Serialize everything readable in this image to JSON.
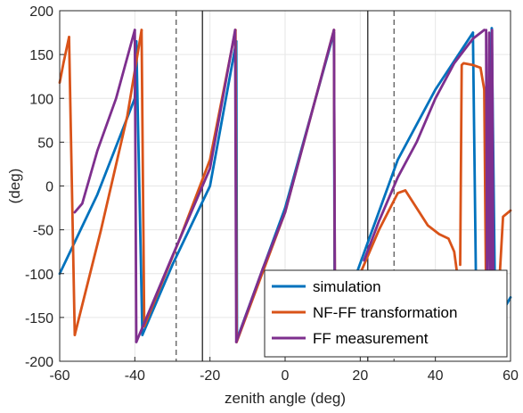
{
  "chart_data": {
    "type": "line",
    "title": "",
    "xlabel": "zenith angle (deg)",
    "ylabel": "(deg)",
    "xlim": [
      -60,
      60
    ],
    "ylim": [
      -200,
      200
    ],
    "xticks": [
      -60,
      -40,
      -20,
      0,
      20,
      40,
      60
    ],
    "yticks": [
      -200,
      -150,
      -100,
      -50,
      0,
      50,
      100,
      150,
      200
    ],
    "grid": true,
    "legend_position": "bottom-right",
    "vertical_lines": [
      {
        "x": -29,
        "style": "dashed",
        "color": "#666666"
      },
      {
        "x": -22,
        "style": "solid",
        "color": "#333333"
      },
      {
        "x": 22,
        "style": "solid",
        "color": "#333333"
      },
      {
        "x": 29,
        "style": "dashed",
        "color": "#666666"
      }
    ],
    "series": [
      {
        "name": "simulation",
        "color": "#0072BD",
        "segments": [
          [
            [
              -60,
              -100
            ],
            [
              -50,
              -10
            ],
            [
              -40,
              100
            ],
            [
              -39.6,
              165
            ]
          ],
          [
            [
              -39.6,
              165
            ],
            [
              -38,
              -170
            ]
          ],
          [
            [
              -38,
              -170
            ],
            [
              -30,
              -90
            ],
            [
              -20,
              0
            ],
            [
              -13,
              165
            ]
          ],
          [
            [
              -13,
              165
            ],
            [
              -12.8,
              -175
            ]
          ],
          [
            [
              -12.8,
              -175
            ],
            [
              0,
              -25
            ],
            [
              13,
              175
            ]
          ],
          [
            [
              13,
              175
            ],
            [
              13.2,
              -180
            ]
          ],
          [
            [
              19,
              -100
            ],
            [
              30,
              30
            ],
            [
              40,
              110
            ],
            [
              50,
              175
            ]
          ],
          [
            [
              50,
              175
            ],
            [
              51,
              -175
            ]
          ],
          [
            [
              53.5,
              -170
            ],
            [
              55,
              180
            ]
          ],
          [
            [
              55,
              180
            ],
            [
              56,
              -172
            ]
          ],
          [
            [
              56,
              -172
            ],
            [
              57,
              -150
            ],
            [
              60,
              -127
            ]
          ]
        ]
      },
      {
        "name": "NF-FF transformation",
        "color": "#D95319",
        "segments": [
          [
            [
              -60,
              118
            ],
            [
              -59,
              140
            ],
            [
              -57.5,
              170
            ]
          ],
          [
            [
              -57.5,
              170
            ],
            [
              -56,
              -170
            ]
          ],
          [
            [
              -56,
              -170
            ],
            [
              -49,
              -50
            ],
            [
              -42,
              80
            ],
            [
              -38.2,
              178
            ]
          ],
          [
            [
              -38.2,
              178
            ],
            [
              -37.5,
              -160
            ]
          ],
          [
            [
              -37.5,
              -160
            ],
            [
              -28,
              -60
            ],
            [
              -20,
              30
            ],
            [
              -13.2,
              178
            ]
          ],
          [
            [
              -13.2,
              178
            ],
            [
              -12.9,
              -178
            ]
          ],
          [
            [
              -12.9,
              -178
            ],
            [
              0,
              -30
            ],
            [
              13,
              178
            ]
          ],
          [
            [
              13,
              178
            ],
            [
              13.3,
              -180
            ]
          ],
          [
            [
              20,
              -100
            ],
            [
              25,
              -50
            ],
            [
              30,
              -8
            ],
            [
              32,
              -5
            ],
            [
              35,
              -25
            ],
            [
              38,
              -45
            ],
            [
              41,
              -55
            ],
            [
              43.5,
              -60
            ],
            [
              45,
              -75
            ],
            [
              45.8,
              -100
            ]
          ],
          [
            [
              46.6,
              -90
            ],
            [
              47,
              138
            ],
            [
              47.5,
              140
            ],
            [
              50,
              138
            ],
            [
              52,
              135
            ],
            [
              53,
              110
            ]
          ],
          [
            [
              53,
              110
            ],
            [
              53.6,
              -180
            ]
          ],
          [
            [
              56.5,
              -150
            ],
            [
              58,
              -35
            ],
            [
              60,
              -28
            ]
          ]
        ]
      },
      {
        "name": "FF measurement",
        "color": "#7E2F8E",
        "segments": [
          [
            [
              -56,
              -30
            ],
            [
              -54,
              -20
            ],
            [
              -50,
              40
            ],
            [
              -45,
              100
            ],
            [
              -40,
              178
            ]
          ],
          [
            [
              -40,
              178
            ],
            [
              -39.6,
              -178
            ]
          ],
          [
            [
              -39.6,
              -178
            ],
            [
              -30,
              -80
            ],
            [
              -20,
              20
            ],
            [
              -13.3,
              178
            ]
          ],
          [
            [
              -13.3,
              178
            ],
            [
              -13,
              -178
            ]
          ],
          [
            [
              -13,
              -178
            ],
            [
              -6,
              -95
            ],
            [
              0,
              -30
            ],
            [
              13,
              178
            ]
          ],
          [
            [
              13,
              178
            ],
            [
              13.3,
              -180
            ]
          ],
          [
            [
              21,
              -85
            ],
            [
              25,
              -40
            ],
            [
              30,
              10
            ],
            [
              35,
              50
            ],
            [
              40,
              100
            ],
            [
              45,
              140
            ],
            [
              50,
              168
            ],
            [
              53,
              178
            ]
          ],
          [
            [
              53.5,
              178
            ],
            [
              53.8,
              -175
            ],
            [
              54.3,
              175
            ],
            [
              54.7,
              -175
            ],
            [
              55.1,
              178
            ],
            [
              55.5,
              -170
            ]
          ]
        ]
      }
    ]
  }
}
